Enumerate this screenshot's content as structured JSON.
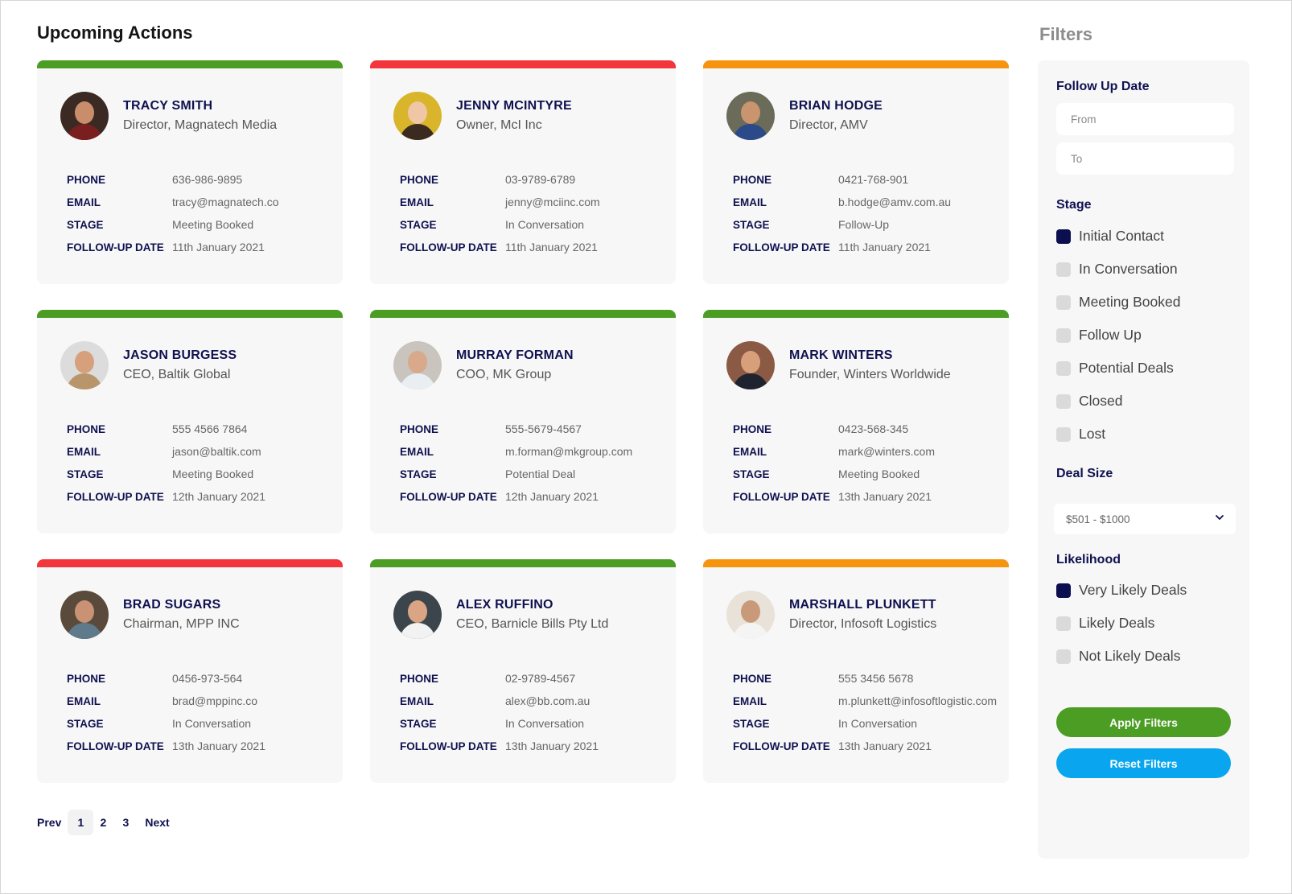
{
  "header": {
    "title": "Upcoming Actions",
    "filters_title": "Filters"
  },
  "labels": {
    "phone": "PHONE",
    "email": "EMAIL",
    "stage": "STAGE",
    "followup": "FOLLOW-UP DATE"
  },
  "colors": {
    "green": "#4c9d23",
    "red": "#f2363c",
    "orange": "#f7940f",
    "navy": "#0c0f4f",
    "blue": "#09a6ef"
  },
  "cards": [
    {
      "name": "TRACY SMITH",
      "title": "Director, Magnatech Media",
      "phone": "636-986-9895",
      "email": "tracy@magnatech.co",
      "stage": "Meeting Booked",
      "followup": "11th January 2021",
      "status_color": "#4c9d23",
      "avatar": {
        "bg": "#3a2a23",
        "skin": "#c98d6b",
        "cloth": "#7a1f1f"
      }
    },
    {
      "name": "JENNY MCINTYRE",
      "title": "Owner, McI Inc",
      "phone": "03-9789-6789",
      "email": "jenny@mciinc.com",
      "stage": "In Conversation",
      "followup": "11th January 2021",
      "status_color": "#f2363c",
      "avatar": {
        "bg": "#d8b52b",
        "skin": "#efc6a6",
        "cloth": "#3a2a20"
      }
    },
    {
      "name": "BRIAN HODGE",
      "title": "Director, AMV",
      "phone": "0421-768-901",
      "email": "b.hodge@amv.com.au",
      "stage": "Follow-Up",
      "followup": "11th January 2021",
      "status_color": "#f7940f",
      "avatar": {
        "bg": "#6b6b5a",
        "skin": "#c9946e",
        "cloth": "#2a4a8a"
      }
    },
    {
      "name": "JASON BURGESS",
      "title": "CEO, Baltik Global",
      "phone": "555 4566 7864",
      "email": "jason@baltik.com",
      "stage": "Meeting Booked",
      "followup": "12th January 2021",
      "status_color": "#4c9d23",
      "avatar": {
        "bg": "#dcdcdc",
        "skin": "#d6a07c",
        "cloth": "#b8956a"
      }
    },
    {
      "name": "MURRAY FORMAN",
      "title": "COO, MK Group",
      "phone": "555-5679-4567",
      "email": "m.forman@mkgroup.com",
      "stage": "Potential Deal",
      "followup": "12th January 2021",
      "status_color": "#4c9d23",
      "avatar": {
        "bg": "#c9c4bd",
        "skin": "#d8a98a",
        "cloth": "#e8eef2"
      }
    },
    {
      "name": "MARK WINTERS",
      "title": "Founder, Winters Worldwide",
      "phone": "0423-568-345",
      "email": "mark@winters.com",
      "stage": "Meeting Booked",
      "followup": "13th January 2021",
      "status_color": "#4c9d23",
      "avatar": {
        "bg": "#8a5a44",
        "skin": "#d8a07a",
        "cloth": "#1f2330"
      }
    },
    {
      "name": "BRAD SUGARS",
      "title": "Chairman, MPP INC",
      "phone": "0456-973-564",
      "email": "brad@mppinc.co",
      "stage": "In Conversation",
      "followup": "13th January 2021",
      "status_color": "#f2363c",
      "avatar": {
        "bg": "#5a4a3c",
        "skin": "#c99274",
        "cloth": "#5f7a8a"
      }
    },
    {
      "name": "ALEX RUFFINO",
      "title": "CEO, Barnicle Bills Pty Ltd",
      "phone": "02-9789-4567",
      "email": "alex@bb.com.au",
      "stage": "In Conversation",
      "followup": "13th January 2021",
      "status_color": "#4c9d23",
      "avatar": {
        "bg": "#3d454c",
        "skin": "#d9a584",
        "cloth": "#f2f2f2"
      }
    },
    {
      "name": "MARSHALL PLUNKETT",
      "title": "Director, Infosoft Logistics",
      "phone": "555 3456 5678",
      "email": "m.plunkett@infosoftlogistic.com",
      "stage": "In Conversation",
      "followup": "13th January 2021",
      "status_color": "#f7940f",
      "avatar": {
        "bg": "#e8e2d8",
        "skin": "#c99a7a",
        "cloth": "#f4f4f4"
      }
    }
  ],
  "pagination": {
    "prev": "Prev",
    "pages": [
      "1",
      "2",
      "3"
    ],
    "current": "1",
    "next": "Next"
  },
  "filters": {
    "follow_up": {
      "title": "Follow Up Date",
      "from_placeholder": "From",
      "to_placeholder": "To"
    },
    "stage": {
      "title": "Stage",
      "options": [
        {
          "label": "Initial Contact",
          "checked": true
        },
        {
          "label": "In Conversation",
          "checked": false
        },
        {
          "label": "Meeting Booked",
          "checked": false
        },
        {
          "label": "Follow Up",
          "checked": false
        },
        {
          "label": "Potential Deals",
          "checked": false
        },
        {
          "label": "Closed",
          "checked": false
        },
        {
          "label": "Lost",
          "checked": false
        }
      ]
    },
    "deal_size": {
      "title": "Deal Size",
      "selected": "$501 - $1000",
      "chevron_icon": "chevron-down-icon"
    },
    "likelihood": {
      "title": "Likelihood",
      "options": [
        {
          "label": "Very Likely Deals",
          "checked": true
        },
        {
          "label": "Likely Deals",
          "checked": false
        },
        {
          "label": "Not Likely Deals",
          "checked": false
        }
      ]
    },
    "apply_label": "Apply Filters",
    "reset_label": "Reset Filters"
  }
}
